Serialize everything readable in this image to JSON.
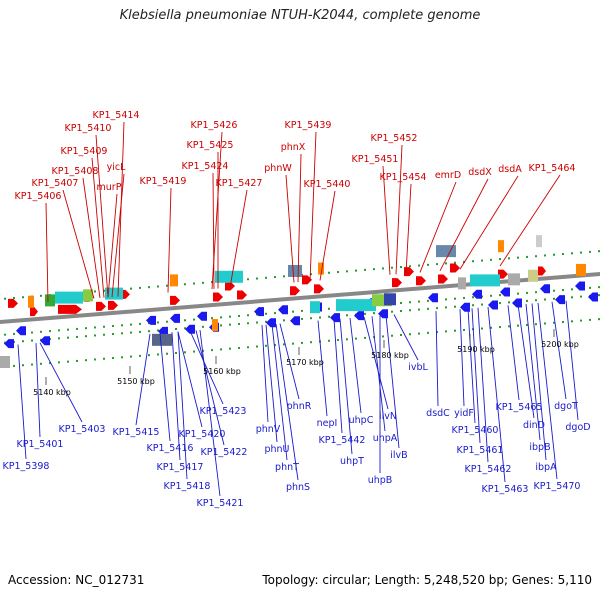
{
  "title": "Klebsiella pneumoniae NTUH-K2044, complete genome",
  "footer": {
    "accession": "Accession: NC_012731",
    "summary": "Topology: circular; Length: 5,248,520 bp; Genes: 5,110"
  },
  "colors": {
    "forward_label": "#cc0000",
    "reverse_label": "#1a1acc",
    "forward_gene": "#ee0000",
    "reverse_gene": "#1a1aee",
    "backbone": "#888888",
    "tick_green": "#2a9a2a"
  },
  "kbp_labels": [
    "5140 kbp",
    "5150 kbp",
    "5160 kbp",
    "5170 kbp",
    "5180 kbp",
    "5190 kbp",
    "5200 kbp"
  ],
  "forward_genes": [
    "KP1_5414",
    "KP1_5410",
    "KP1_5409",
    "KP1_5408",
    "yicL",
    "KP1_5407",
    "murP",
    "KP1_5406",
    "KP1_5419",
    "KP1_5426",
    "KP1_5425",
    "KP1_5424",
    "KP1_5427",
    "KP1_5439",
    "phnX",
    "phnW",
    "KP1_5440",
    "KP1_5452",
    "KP1_5451",
    "KP1_5454",
    "emrD",
    "dsdX",
    "dsdA",
    "KP1_5464"
  ],
  "reverse_genes": [
    "KP1_5403",
    "KP1_5401",
    "KP1_5398",
    "KP1_5415",
    "KP1_5416",
    "KP1_5417",
    "KP1_5418",
    "KP1_5420",
    "KP1_5423",
    "KP1_5422",
    "KP1_5421",
    "phnR",
    "phnV",
    "phnU",
    "phnT",
    "phnS",
    "nepI",
    "KP1_5442",
    "uhpT",
    "uhpC",
    "ilvN",
    "uhpA",
    "uhpB",
    "ilvB",
    "ivbL",
    "dsdC",
    "yidF",
    "KP1_5460",
    "KP1_5461",
    "KP1_5462",
    "KP1_5463",
    "KP1_5465",
    "dinD",
    "ibpB",
    "ibpA",
    "KP1_5470",
    "dgoT",
    "dgoD"
  ]
}
